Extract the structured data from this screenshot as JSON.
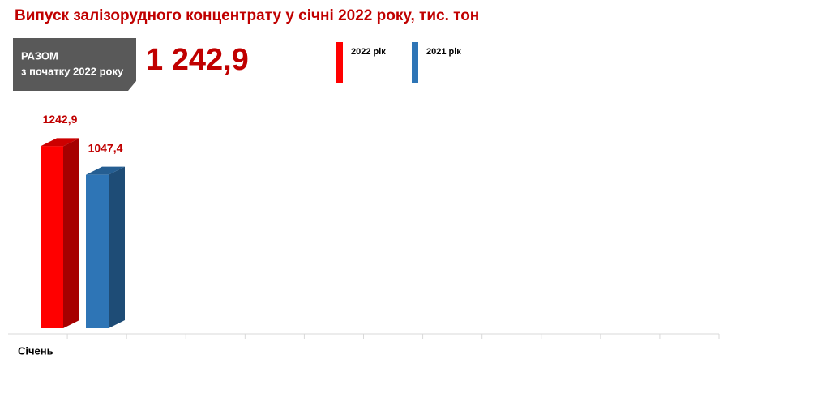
{
  "chart_data": {
    "type": "bar3d",
    "title": "Випуск залізорудного концентрату у січні 2022 року, тис. тон",
    "summary": {
      "label": "РАЗОМ",
      "sublabel": "з початку 2022 року",
      "total": "1 242,9"
    },
    "categories": [
      "Січень",
      null,
      null,
      null,
      null,
      null,
      null,
      null,
      null,
      null,
      null,
      null
    ],
    "series": [
      {
        "name": "2022 рік",
        "color": "#ff0000",
        "values": [
          1242.9,
          null,
          null,
          null,
          null,
          null,
          null,
          null,
          null,
          null,
          null,
          null
        ],
        "value_labels": [
          "1242,9",
          null,
          null,
          null,
          null,
          null,
          null,
          null,
          null,
          null,
          null,
          null
        ]
      },
      {
        "name": "2021 рік",
        "color": "#2e75b6",
        "values": [
          1047.4,
          null,
          null,
          null,
          null,
          null,
          null,
          null,
          null,
          null,
          null,
          null
        ],
        "value_labels": [
          "1047,4",
          null,
          null,
          null,
          null,
          null,
          null,
          null,
          null,
          null,
          null,
          null
        ]
      }
    ],
    "ylim": [
      0,
      1300
    ]
  }
}
